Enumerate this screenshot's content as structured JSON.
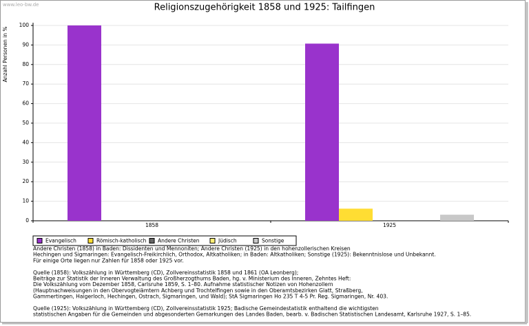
{
  "watermark": "www.leo-bw.de",
  "chart_data": {
    "type": "bar",
    "title": "Religionszugehörigkeit 1858 und 1925: Tailfingen",
    "y_label": "Anzahl Personen in %",
    "categories": [
      "1858",
      "1925"
    ],
    "series": [
      {
        "name": "Evangelisch",
        "color": "#9933cc",
        "values": [
          100,
          90.7
        ]
      },
      {
        "name": "Römisch-katholisch",
        "color": "#ffdd33",
        "values": [
          0,
          6.2
        ]
      },
      {
        "name": "Andere Christen",
        "color": "#666666",
        "values": [
          0,
          0
        ]
      },
      {
        "name": "Jüdisch",
        "color": "#ffee77",
        "values": [
          0,
          0
        ]
      },
      {
        "name": "Sonstige",
        "color": "#c8c8c8",
        "values": [
          0,
          3.1
        ]
      }
    ],
    "ylim": [
      0,
      100
    ],
    "yticks": [
      0,
      10,
      20,
      30,
      40,
      50,
      60,
      70,
      80,
      90,
      100
    ],
    "grid": true
  },
  "notes": [
    [
      "Andere Christen (1858) in Baden: Dissidenten und Mennoniten; Andere Christen (1925) in den hohenzollerischen Kreisen",
      "Hechingen und Sigmaringen: Evangelisch-Freikirchlich, Orthodox, Altkatholiken; in Baden: Altkatholiken; Sonstige (1925): Bekenntnislose und Unbekannt.",
      "Für einige Orte liegen nur Zahlen für 1858 oder 1925 vor."
    ],
    [
      "Quelle (1858): Volkszählung in Württemberg (CD), Zollvereinsstatistik 1858 und 1861 (OA Leonberg);",
      "Beiträge zur Statistik der Inneren Verwaltung des Großherzogthums Baden, hg. v. Ministerium des Inneren, Zehntes Heft:",
      "Die Volkszählung vom Dezember 1858, Carlsruhe 1859, S. 1–80. Aufnahme statistischer Notizen von Hohenzollern",
      "(Hauptnachweisungen in den Obervogteiämtern Achberg und Trochtelfingen sowie in den Oberamtsbezirken Glatt, Straßberg,",
      "Gammertingen, Haigerloch, Hechingen, Ostrach, Sigmaringen, und Wald); StA Sigmaringen Ho 235 T 4-5 Pr. Reg. Sigmaringen, Nr. 403."
    ],
    [
      "Quelle (1925): Volkszählung in Württemberg (CD), Zollvereinsstatistik 1925; Badische Gemeindestatistik enthaltend die wichtigsten",
      "statistischen Angaben für die Gemeinden und abgesonderten Gemarkungen des Landes Baden, bearb. v. Badischen Statistischen Landesamt, Karlsruhe 1927, S. 1–85."
    ]
  ]
}
